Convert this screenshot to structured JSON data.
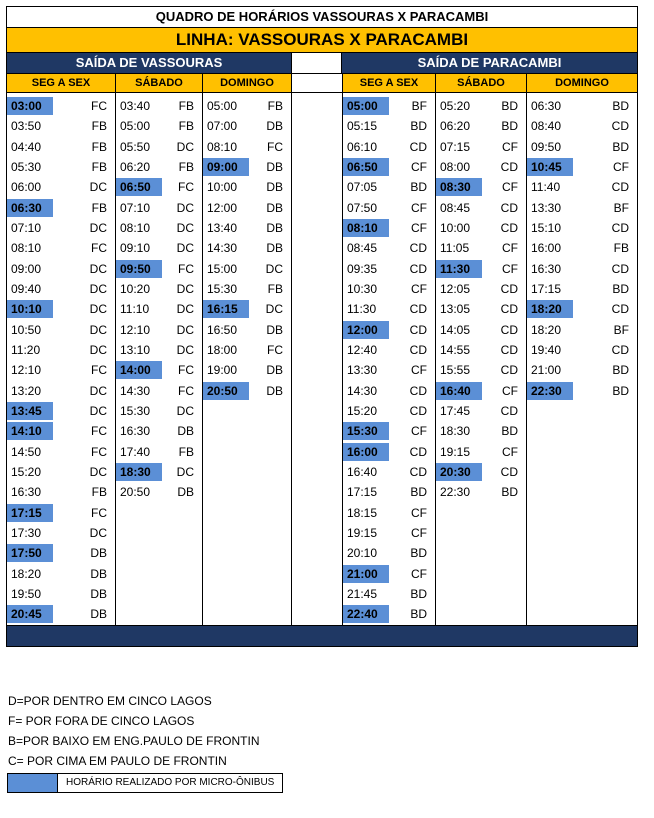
{
  "title": "QUADRO DE HORÁRIOS VASSOURAS X PARACAMBI",
  "line": "LINHA: VASSOURAS X PARACAMBI",
  "departures": [
    "SAÍDA DE VASSOURAS",
    "SAÍDA DE PARACAMBI"
  ],
  "day_headers": [
    "SEG A SEX",
    "SÁBADO",
    "DOMINGO"
  ],
  "columns": [
    [
      [
        "03:00",
        "FC",
        1
      ],
      [
        "03:50",
        "FB",
        0
      ],
      [
        "04:40",
        "FB",
        0
      ],
      [
        "05:30",
        "FB",
        0
      ],
      [
        "06:00",
        "DC",
        0
      ],
      [
        "06:30",
        "FB",
        1
      ],
      [
        "07:10",
        "DC",
        0
      ],
      [
        "08:10",
        "FC",
        0
      ],
      [
        "09:00",
        "DC",
        0
      ],
      [
        "09:40",
        "DC",
        0
      ],
      [
        "10:10",
        "DC",
        1
      ],
      [
        "10:50",
        "DC",
        0
      ],
      [
        "11:20",
        "DC",
        0
      ],
      [
        "12:10",
        "FC",
        0
      ],
      [
        "13:20",
        "DC",
        0
      ],
      [
        "13:45",
        "DC",
        1
      ],
      [
        "14:10",
        "FC",
        1
      ],
      [
        "14:50",
        "FC",
        0
      ],
      [
        "15:20",
        "DC",
        0
      ],
      [
        "16:30",
        "FB",
        0
      ],
      [
        "17:15",
        "FC",
        1
      ],
      [
        "17:30",
        "DC",
        0
      ],
      [
        "17:50",
        "DB",
        1
      ],
      [
        "18:20",
        "DB",
        0
      ],
      [
        "19:50",
        "DB",
        0
      ],
      [
        "20:45",
        "DB",
        1
      ]
    ],
    [
      [
        "03:40",
        "FB",
        0
      ],
      [
        "05:00",
        "FB",
        0
      ],
      [
        "05:50",
        "DC",
        0
      ],
      [
        "06:20",
        "FB",
        0
      ],
      [
        "06:50",
        "FC",
        1
      ],
      [
        "07:10",
        "DC",
        0
      ],
      [
        "08:10",
        "DC",
        0
      ],
      [
        "09:10",
        "DC",
        0
      ],
      [
        "09:50",
        "FC",
        1
      ],
      [
        "10:20",
        "DC",
        0
      ],
      [
        "11:10",
        "DC",
        0
      ],
      [
        "12:10",
        "DC",
        0
      ],
      [
        "13:10",
        "DC",
        0
      ],
      [
        "14:00",
        "FC",
        1
      ],
      [
        "14:30",
        "FC",
        0
      ],
      [
        "15:30",
        "DC",
        0
      ],
      [
        "16:30",
        "DB",
        0
      ],
      [
        "17:40",
        "FB",
        0
      ],
      [
        "18:30",
        "DC",
        1
      ],
      [
        "20:50",
        "DB",
        0
      ]
    ],
    [
      [
        "05:00",
        "FB",
        0
      ],
      [
        "07:00",
        "DB",
        0
      ],
      [
        "08:10",
        "FC",
        0
      ],
      [
        "09:00",
        "DB",
        1
      ],
      [
        "10:00",
        "DB",
        0
      ],
      [
        "12:00",
        "DB",
        0
      ],
      [
        "13:40",
        "DB",
        0
      ],
      [
        "14:30",
        "DB",
        0
      ],
      [
        "15:00",
        "DC",
        0
      ],
      [
        "15:30",
        "FB",
        0
      ],
      [
        "16:15",
        "DC",
        1
      ],
      [
        "16:50",
        "DB",
        0
      ],
      [
        "18:00",
        "FC",
        0
      ],
      [
        "19:00",
        "DB",
        0
      ],
      [
        "20:50",
        "DB",
        1
      ]
    ],
    [
      [
        "05:00",
        "BF",
        1
      ],
      [
        "05:15",
        "BD",
        0
      ],
      [
        "06:10",
        "CD",
        0
      ],
      [
        "06:50",
        "CF",
        1
      ],
      [
        "07:05",
        "BD",
        0
      ],
      [
        "07:50",
        "CF",
        0
      ],
      [
        "08:10",
        "CF",
        1
      ],
      [
        "08:45",
        "CD",
        0
      ],
      [
        "09:35",
        "CD",
        0
      ],
      [
        "10:30",
        "CF",
        0
      ],
      [
        "11:30",
        "CD",
        0
      ],
      [
        "12:00",
        "CD",
        1
      ],
      [
        "12:40",
        "CD",
        0
      ],
      [
        "13:30",
        "CF",
        0
      ],
      [
        "14:30",
        "CD",
        0
      ],
      [
        "15:20",
        "CD",
        0
      ],
      [
        "15:30",
        "CF",
        1
      ],
      [
        "16:00",
        "CD",
        1
      ],
      [
        "16:40",
        "CD",
        0
      ],
      [
        "17:15",
        "BD",
        0
      ],
      [
        "18:15",
        "CF",
        0
      ],
      [
        "19:15",
        "CF",
        0
      ],
      [
        "20:10",
        "BD",
        0
      ],
      [
        "21:00",
        "CF",
        1
      ],
      [
        "21:45",
        "BD",
        0
      ],
      [
        "22:40",
        "BD",
        1
      ]
    ],
    [
      [
        "05:20",
        "BD",
        0
      ],
      [
        "06:20",
        "BD",
        0
      ],
      [
        "07:15",
        "CF",
        0
      ],
      [
        "08:00",
        "CD",
        0
      ],
      [
        "08:30",
        "CF",
        1
      ],
      [
        "08:45",
        "CD",
        0
      ],
      [
        "10:00",
        "CD",
        0
      ],
      [
        "11:05",
        "CF",
        0
      ],
      [
        "11:30",
        "CF",
        1
      ],
      [
        "12:05",
        "CD",
        0
      ],
      [
        "13:05",
        "CD",
        0
      ],
      [
        "14:05",
        "CD",
        0
      ],
      [
        "14:55",
        "CD",
        0
      ],
      [
        "15:55",
        "CD",
        0
      ],
      [
        "16:40",
        "CF",
        1
      ],
      [
        "17:45",
        "CD",
        0
      ],
      [
        "18:30",
        "BD",
        0
      ],
      [
        "19:15",
        "CF",
        0
      ],
      [
        "20:30",
        "CD",
        1
      ],
      [
        "22:30",
        "BD",
        0
      ]
    ],
    [
      [
        "06:30",
        "BD",
        0
      ],
      [
        "08:40",
        "CD",
        0
      ],
      [
        "09:50",
        "BD",
        0
      ],
      [
        "10:45",
        "CF",
        1
      ],
      [
        "11:40",
        "CD",
        0
      ],
      [
        "13:30",
        "BF",
        0
      ],
      [
        "15:10",
        "CD",
        0
      ],
      [
        "16:00",
        "FB",
        0
      ],
      [
        "16:30",
        "CD",
        0
      ],
      [
        "17:15",
        "BD",
        0
      ],
      [
        "18:20",
        "CD",
        1
      ],
      [
        "18:20",
        "BF",
        0
      ],
      [
        "19:40",
        "CD",
        0
      ],
      [
        "21:00",
        "BD",
        0
      ],
      [
        "22:30",
        "BD",
        1
      ]
    ]
  ],
  "legend": [
    "D=POR DENTRO EM CINCO LAGOS",
    "F= POR FORA DE CINCO LAGOS",
    "B=POR BAIXO EM ENG.PAULO DE FRONTIN",
    "C= POR CIMA EM PAULO DE FRONTIN"
  ],
  "legend_box": "HORÁRIO REALIZADO POR MICRO-ÔNIBUS",
  "colors": {
    "header_blue": "#1f3864",
    "yellow": "#ffc000",
    "highlight": "#5b8fd6"
  }
}
